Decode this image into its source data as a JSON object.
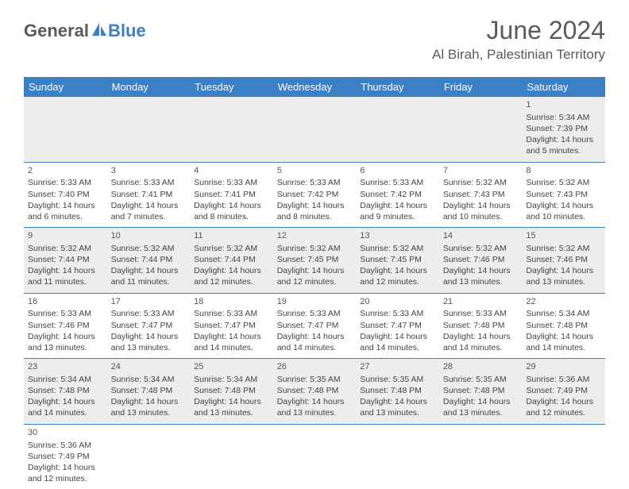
{
  "brand": {
    "part1": "General",
    "part2": "Blue"
  },
  "title": "June 2024",
  "location": "Al Birah, Palestinian Territory",
  "header_bg": "#3b7fc4",
  "header_fg": "#ffffff",
  "alt_row_bg": "#ededed",
  "weekdays": [
    "Sunday",
    "Monday",
    "Tuesday",
    "Wednesday",
    "Thursday",
    "Friday",
    "Saturday"
  ],
  "weeks": [
    [
      null,
      null,
      null,
      null,
      null,
      null,
      {
        "d": "1",
        "sr": "Sunrise: 5:34 AM",
        "ss": "Sunset: 7:39 PM",
        "dl": "Daylight: 14 hours and 5 minutes."
      }
    ],
    [
      {
        "d": "2",
        "sr": "Sunrise: 5:33 AM",
        "ss": "Sunset: 7:40 PM",
        "dl": "Daylight: 14 hours and 6 minutes."
      },
      {
        "d": "3",
        "sr": "Sunrise: 5:33 AM",
        "ss": "Sunset: 7:41 PM",
        "dl": "Daylight: 14 hours and 7 minutes."
      },
      {
        "d": "4",
        "sr": "Sunrise: 5:33 AM",
        "ss": "Sunset: 7:41 PM",
        "dl": "Daylight: 14 hours and 8 minutes."
      },
      {
        "d": "5",
        "sr": "Sunrise: 5:33 AM",
        "ss": "Sunset: 7:42 PM",
        "dl": "Daylight: 14 hours and 8 minutes."
      },
      {
        "d": "6",
        "sr": "Sunrise: 5:33 AM",
        "ss": "Sunset: 7:42 PM",
        "dl": "Daylight: 14 hours and 9 minutes."
      },
      {
        "d": "7",
        "sr": "Sunrise: 5:32 AM",
        "ss": "Sunset: 7:43 PM",
        "dl": "Daylight: 14 hours and 10 minutes."
      },
      {
        "d": "8",
        "sr": "Sunrise: 5:32 AM",
        "ss": "Sunset: 7:43 PM",
        "dl": "Daylight: 14 hours and 10 minutes."
      }
    ],
    [
      {
        "d": "9",
        "sr": "Sunrise: 5:32 AM",
        "ss": "Sunset: 7:44 PM",
        "dl": "Daylight: 14 hours and 11 minutes."
      },
      {
        "d": "10",
        "sr": "Sunrise: 5:32 AM",
        "ss": "Sunset: 7:44 PM",
        "dl": "Daylight: 14 hours and 11 minutes."
      },
      {
        "d": "11",
        "sr": "Sunrise: 5:32 AM",
        "ss": "Sunset: 7:44 PM",
        "dl": "Daylight: 14 hours and 12 minutes."
      },
      {
        "d": "12",
        "sr": "Sunrise: 5:32 AM",
        "ss": "Sunset: 7:45 PM",
        "dl": "Daylight: 14 hours and 12 minutes."
      },
      {
        "d": "13",
        "sr": "Sunrise: 5:32 AM",
        "ss": "Sunset: 7:45 PM",
        "dl": "Daylight: 14 hours and 12 minutes."
      },
      {
        "d": "14",
        "sr": "Sunrise: 5:32 AM",
        "ss": "Sunset: 7:46 PM",
        "dl": "Daylight: 14 hours and 13 minutes."
      },
      {
        "d": "15",
        "sr": "Sunrise: 5:32 AM",
        "ss": "Sunset: 7:46 PM",
        "dl": "Daylight: 14 hours and 13 minutes."
      }
    ],
    [
      {
        "d": "16",
        "sr": "Sunrise: 5:33 AM",
        "ss": "Sunset: 7:46 PM",
        "dl": "Daylight: 14 hours and 13 minutes."
      },
      {
        "d": "17",
        "sr": "Sunrise: 5:33 AM",
        "ss": "Sunset: 7:47 PM",
        "dl": "Daylight: 14 hours and 13 minutes."
      },
      {
        "d": "18",
        "sr": "Sunrise: 5:33 AM",
        "ss": "Sunset: 7:47 PM",
        "dl": "Daylight: 14 hours and 14 minutes."
      },
      {
        "d": "19",
        "sr": "Sunrise: 5:33 AM",
        "ss": "Sunset: 7:47 PM",
        "dl": "Daylight: 14 hours and 14 minutes."
      },
      {
        "d": "20",
        "sr": "Sunrise: 5:33 AM",
        "ss": "Sunset: 7:47 PM",
        "dl": "Daylight: 14 hours and 14 minutes."
      },
      {
        "d": "21",
        "sr": "Sunrise: 5:33 AM",
        "ss": "Sunset: 7:48 PM",
        "dl": "Daylight: 14 hours and 14 minutes."
      },
      {
        "d": "22",
        "sr": "Sunrise: 5:34 AM",
        "ss": "Sunset: 7:48 PM",
        "dl": "Daylight: 14 hours and 14 minutes."
      }
    ],
    [
      {
        "d": "23",
        "sr": "Sunrise: 5:34 AM",
        "ss": "Sunset: 7:48 PM",
        "dl": "Daylight: 14 hours and 14 minutes."
      },
      {
        "d": "24",
        "sr": "Sunrise: 5:34 AM",
        "ss": "Sunset: 7:48 PM",
        "dl": "Daylight: 14 hours and 13 minutes."
      },
      {
        "d": "25",
        "sr": "Sunrise: 5:34 AM",
        "ss": "Sunset: 7:48 PM",
        "dl": "Daylight: 14 hours and 13 minutes."
      },
      {
        "d": "26",
        "sr": "Sunrise: 5:35 AM",
        "ss": "Sunset: 7:48 PM",
        "dl": "Daylight: 14 hours and 13 minutes."
      },
      {
        "d": "27",
        "sr": "Sunrise: 5:35 AM",
        "ss": "Sunset: 7:48 PM",
        "dl": "Daylight: 14 hours and 13 minutes."
      },
      {
        "d": "28",
        "sr": "Sunrise: 5:35 AM",
        "ss": "Sunset: 7:48 PM",
        "dl": "Daylight: 14 hours and 13 minutes."
      },
      {
        "d": "29",
        "sr": "Sunrise: 5:36 AM",
        "ss": "Sunset: 7:49 PM",
        "dl": "Daylight: 14 hours and 12 minutes."
      }
    ],
    [
      {
        "d": "30",
        "sr": "Sunrise: 5:36 AM",
        "ss": "Sunset: 7:49 PM",
        "dl": "Daylight: 14 hours and 12 minutes."
      },
      null,
      null,
      null,
      null,
      null,
      null
    ]
  ]
}
